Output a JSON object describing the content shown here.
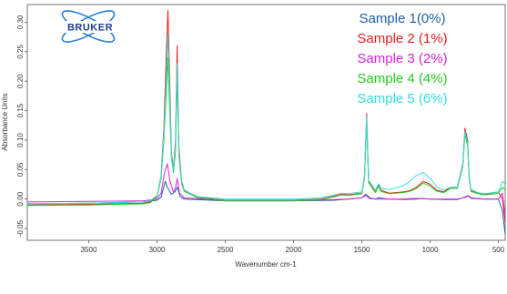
{
  "logo": {
    "text": "BRUKER"
  },
  "chart_data": {
    "type": "line",
    "xlabel": "Wavenumber cm-1",
    "ylabel": "Absorbance Units",
    "xlim": [
      3950,
      450
    ],
    "ylim": [
      -0.07,
      0.33
    ],
    "x_reversed": true,
    "x_ticks": [
      3500,
      3000,
      2500,
      2000,
      1500,
      1000,
      500
    ],
    "y_ticks": [
      -0.05,
      0.0,
      0.05,
      0.1,
      0.15,
      0.2,
      0.25,
      0.3
    ],
    "y_tick_labels": [
      "-0.05",
      "0.00",
      "0.05",
      "0.10",
      "0.15",
      "0.20",
      "0.25",
      "0.30"
    ],
    "legend_position": "top-right",
    "series": [
      {
        "name": "Sample 1(0%)",
        "color": "#1f5fa8",
        "x": [
          3950,
          3500,
          3100,
          3000,
          2970,
          2940,
          2920,
          2895,
          2870,
          2850,
          2830,
          2800,
          2500,
          2000,
          1700,
          1600,
          1500,
          1470,
          1440,
          1400,
          1380,
          1300,
          1200,
          1100,
          1050,
          1000,
          900,
          800,
          740,
          720,
          700,
          600,
          500,
          470,
          450
        ],
        "y": [
          -0.008,
          -0.007,
          -0.005,
          -0.002,
          0.003,
          0.03,
          0.018,
          0.008,
          0.012,
          0.02,
          0.004,
          0.0,
          -0.003,
          -0.003,
          -0.002,
          0.0,
          0.002,
          0.008,
          0.002,
          0.0,
          0.002,
          0.0,
          -0.001,
          0.0,
          0.001,
          0.0,
          -0.001,
          -0.001,
          0.004,
          0.006,
          0.002,
          0.0,
          0.0,
          -0.02,
          -0.06
        ]
      },
      {
        "name": "Sample 2 (1%)",
        "color": "#ee1c1c",
        "x": [
          3950,
          3500,
          3100,
          3050,
          3000,
          2970,
          2950,
          2930,
          2920,
          2910,
          2895,
          2880,
          2865,
          2853,
          2840,
          2820,
          2800,
          2700,
          2500,
          2000,
          1800,
          1700,
          1650,
          1600,
          1500,
          1480,
          1465,
          1450,
          1400,
          1378,
          1360,
          1300,
          1200,
          1150,
          1100,
          1050,
          1000,
          950,
          900,
          850,
          800,
          760,
          745,
          725,
          715,
          700,
          650,
          600,
          500,
          470,
          450
        ],
        "y": [
          -0.01,
          -0.009,
          -0.007,
          -0.005,
          0.005,
          0.04,
          0.12,
          0.26,
          0.32,
          0.23,
          0.08,
          0.05,
          0.1,
          0.26,
          0.09,
          0.03,
          0.015,
          0.003,
          -0.002,
          -0.002,
          0.0,
          0.005,
          0.008,
          0.007,
          0.01,
          0.04,
          0.145,
          0.03,
          0.012,
          0.025,
          0.015,
          0.01,
          0.012,
          0.014,
          0.02,
          0.03,
          0.025,
          0.015,
          0.012,
          0.02,
          0.02,
          0.06,
          0.12,
          0.1,
          0.04,
          0.015,
          0.01,
          0.008,
          0.012,
          0.0,
          -0.04
        ]
      },
      {
        "name": "Sample 3 (2%)",
        "color": "#dd22dd",
        "x": [
          3950,
          3500,
          3100,
          3000,
          2970,
          2945,
          2925,
          2905,
          2880,
          2865,
          2852,
          2835,
          2800,
          2500,
          2000,
          1700,
          1600,
          1500,
          1470,
          1445,
          1400,
          1300,
          1200,
          1100,
          1000,
          900,
          800,
          740,
          720,
          700,
          600,
          500,
          470,
          450
        ],
        "y": [
          -0.005,
          -0.004,
          -0.003,
          0.0,
          0.01,
          0.045,
          0.06,
          0.03,
          0.012,
          0.018,
          0.035,
          0.01,
          0.002,
          -0.002,
          -0.002,
          -0.001,
          0.0,
          0.002,
          0.006,
          0.001,
          0.0,
          0.0,
          0.0,
          0.001,
          0.0,
          0.0,
          0.0,
          0.003,
          0.005,
          0.001,
          0.0,
          0.0,
          0.01,
          -0.03
        ]
      },
      {
        "name": "Sample 4 (4%)",
        "color": "#22cc22",
        "x": [
          3950,
          3500,
          3100,
          3050,
          3000,
          2970,
          2950,
          2930,
          2920,
          2910,
          2895,
          2880,
          2865,
          2853,
          2840,
          2820,
          2800,
          2700,
          2500,
          2000,
          1800,
          1700,
          1650,
          1600,
          1500,
          1480,
          1465,
          1450,
          1400,
          1378,
          1360,
          1300,
          1200,
          1150,
          1100,
          1050,
          1000,
          950,
          900,
          850,
          800,
          760,
          745,
          725,
          715,
          700,
          650,
          600,
          500,
          470,
          450
        ],
        "y": [
          -0.011,
          -0.01,
          -0.008,
          -0.006,
          0.004,
          0.035,
          0.1,
          0.19,
          0.24,
          0.17,
          0.07,
          0.045,
          0.08,
          0.21,
          0.075,
          0.025,
          0.013,
          0.002,
          -0.003,
          -0.003,
          -0.001,
          0.004,
          0.007,
          0.006,
          0.009,
          0.035,
          0.13,
          0.028,
          0.011,
          0.022,
          0.013,
          0.009,
          0.011,
          0.013,
          0.018,
          0.027,
          0.022,
          0.013,
          0.011,
          0.018,
          0.018,
          0.055,
          0.11,
          0.09,
          0.035,
          0.013,
          0.009,
          0.007,
          0.01,
          0.02,
          0.015
        ]
      },
      {
        "name": "Sample 5 (6%)",
        "color": "#33e0e0",
        "x": [
          3950,
          3500,
          3100,
          3050,
          3000,
          2970,
          2950,
          2930,
          2920,
          2910,
          2895,
          2880,
          2865,
          2853,
          2840,
          2820,
          2800,
          2700,
          2500,
          2000,
          1800,
          1700,
          1650,
          1600,
          1500,
          1480,
          1465,
          1450,
          1400,
          1378,
          1360,
          1300,
          1200,
          1150,
          1100,
          1050,
          1000,
          950,
          900,
          850,
          800,
          760,
          745,
          725,
          715,
          700,
          650,
          600,
          500,
          470,
          450
        ],
        "y": [
          -0.008,
          -0.007,
          -0.005,
          -0.003,
          0.006,
          0.038,
          0.11,
          0.22,
          0.28,
          0.2,
          0.075,
          0.048,
          0.09,
          0.23,
          0.08,
          0.028,
          0.014,
          0.004,
          0.0,
          0.0,
          0.002,
          0.007,
          0.01,
          0.009,
          0.012,
          0.038,
          0.14,
          0.032,
          0.015,
          0.026,
          0.018,
          0.016,
          0.022,
          0.03,
          0.04,
          0.045,
          0.035,
          0.02,
          0.015,
          0.02,
          0.02,
          0.058,
          0.115,
          0.095,
          0.04,
          0.016,
          0.011,
          0.009,
          0.012,
          0.03,
          0.025
        ]
      }
    ]
  }
}
